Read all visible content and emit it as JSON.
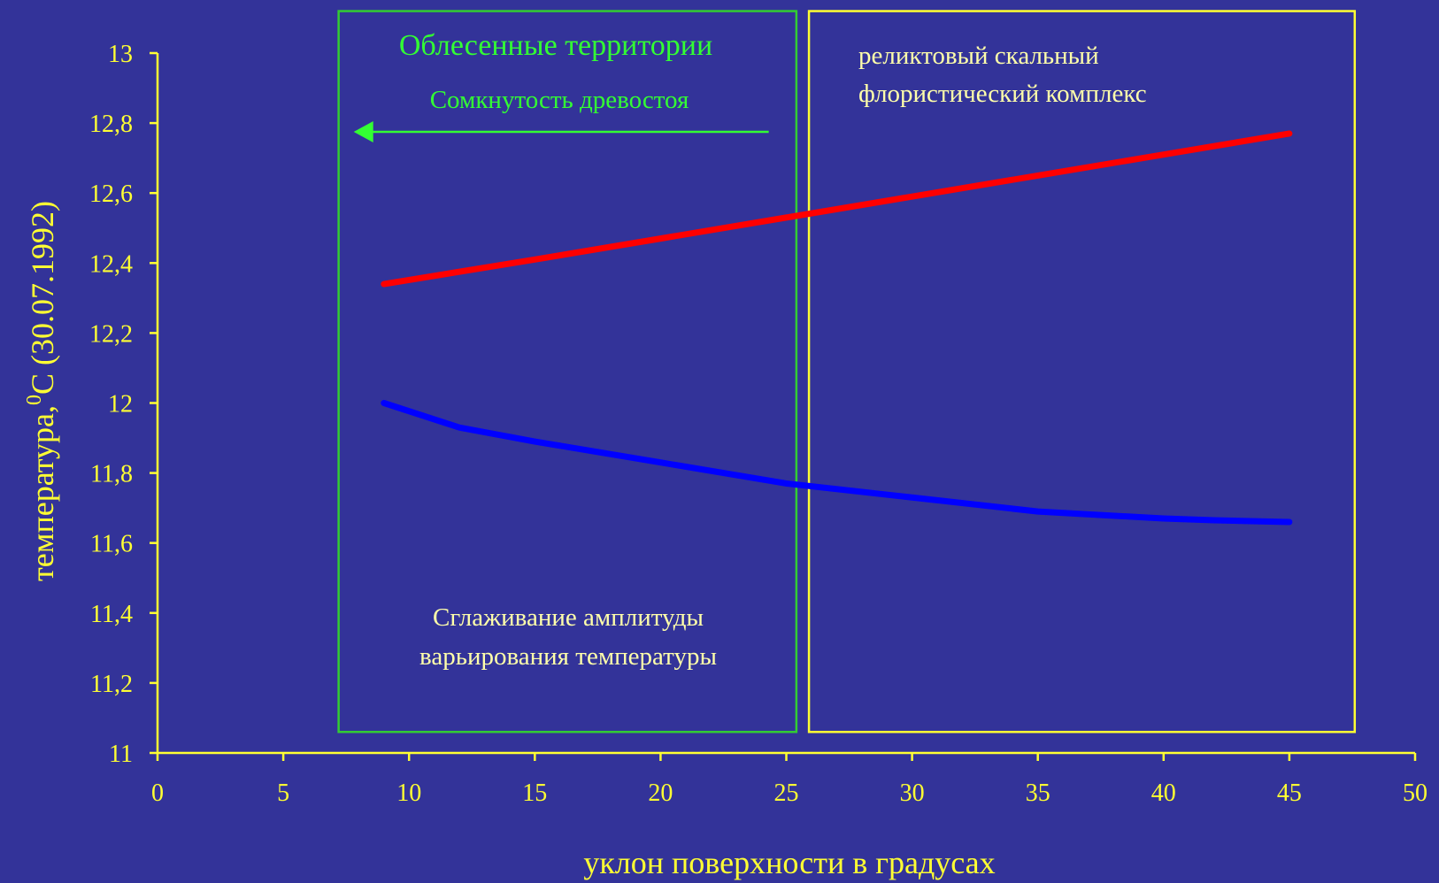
{
  "chart_data": {
    "type": "line",
    "xlabel": "уклон поверхности в градусах",
    "ylabel_main": "температура,",
    "ylabel_sup": "0",
    "ylabel_rest": "С (30.07.1992)",
    "xlim": [
      0,
      50
    ],
    "ylim": [
      11,
      13
    ],
    "x_ticks": [
      "0",
      "5",
      "10",
      "15",
      "20",
      "25",
      "30",
      "35",
      "40",
      "45",
      "50"
    ],
    "y_ticks": [
      "11",
      "11,2",
      "11,4",
      "11,6",
      "11,8",
      "12",
      "12,2",
      "12,4",
      "12,6",
      "12,8",
      "13"
    ],
    "grid": false,
    "series": [
      {
        "color": "#ff0000",
        "x": [
          9,
          15,
          20,
          25,
          30,
          35,
          40,
          45
        ],
        "y": [
          12.34,
          12.41,
          12.47,
          12.53,
          12.59,
          12.65,
          12.71,
          12.77
        ]
      },
      {
        "color": "#0000ff",
        "x": [
          9,
          12,
          15,
          20,
          25,
          30,
          35,
          40,
          42,
          45
        ],
        "y": [
          12.0,
          11.93,
          11.89,
          11.83,
          11.77,
          11.73,
          11.69,
          11.67,
          11.665,
          11.66
        ]
      }
    ],
    "regions": [
      {
        "x_range": [
          7.2,
          25.4
        ],
        "y_range": [
          11.06,
          13.12
        ],
        "color": "#33cc33"
      },
      {
        "x_range": [
          25.9,
          47.6
        ],
        "y_range": [
          11.06,
          13.12
        ],
        "color": "#ffff33"
      }
    ],
    "annotations": {
      "forested_title": "Облесенные территории",
      "canopy": "Сомкнутость древостоя",
      "relict_line1": "реликтовый скальный",
      "relict_line2": "флористический комплекс",
      "smoothing_line1": "Сглаживание амплитуды",
      "smoothing_line2": "варьирования температуры"
    },
    "arrow": {
      "x_from": 24.3,
      "x_to": 7.8,
      "y": 12.775,
      "color": "#33ff33"
    }
  }
}
